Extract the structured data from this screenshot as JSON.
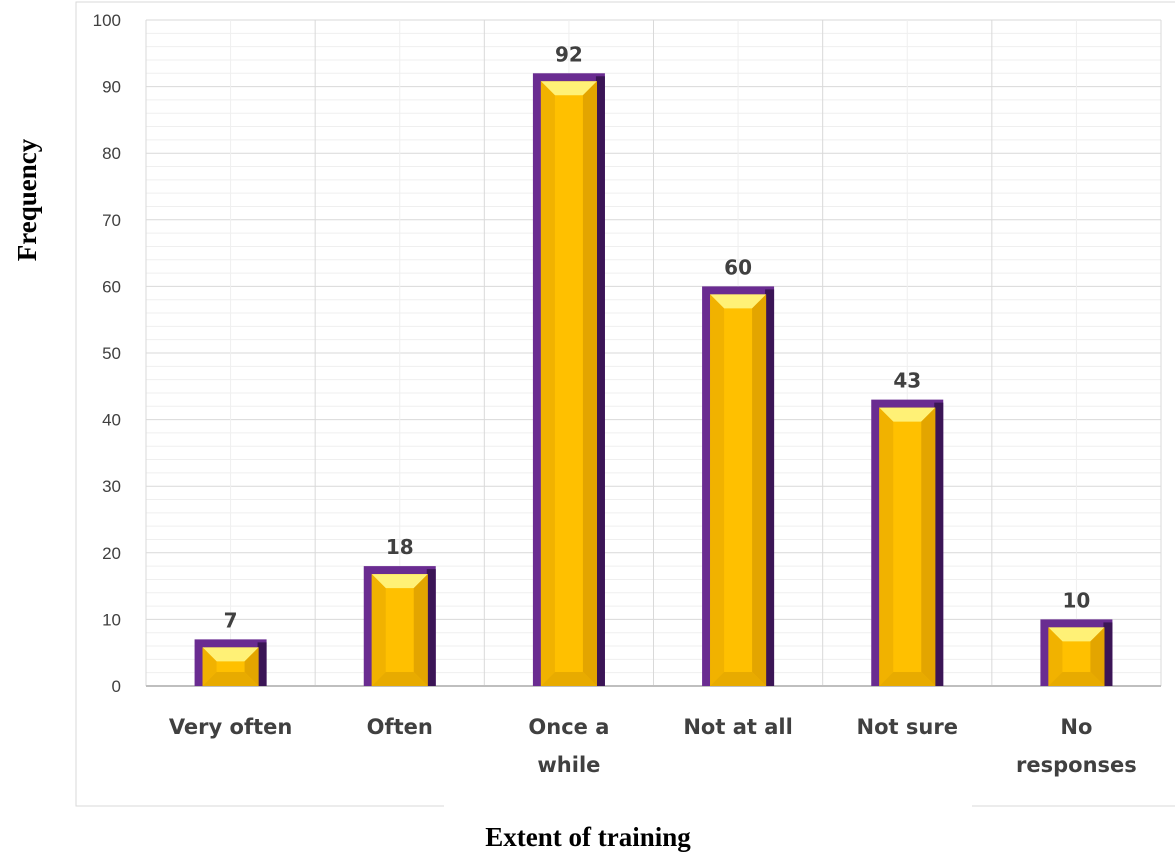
{
  "chart_data": {
    "type": "bar",
    "title": "",
    "xlabel": "Extent of training",
    "ylabel": "Frequency",
    "categories": [
      [
        "Very often"
      ],
      [
        "Often"
      ],
      [
        "Once a",
        "while"
      ],
      [
        "Not at all"
      ],
      [
        "Not sure"
      ],
      [
        "No",
        "responses"
      ]
    ],
    "values": [
      7,
      18,
      92,
      60,
      43,
      10
    ],
    "ylim": [
      0,
      100
    ],
    "yticks": [
      0,
      10,
      20,
      30,
      40,
      50,
      60,
      70,
      80,
      90,
      100
    ],
    "grid": true,
    "data_labels": true,
    "colors": {
      "bar_fill": "#FFC000",
      "bar_highlight": "#FFF176",
      "bar_border": "#6A2C91",
      "bar_shadow": "#3B1556",
      "grid_major": "#D9D9D9",
      "grid_minor": "#EFEFEF",
      "axis": "#BFBFBF",
      "text": "#404040"
    }
  }
}
